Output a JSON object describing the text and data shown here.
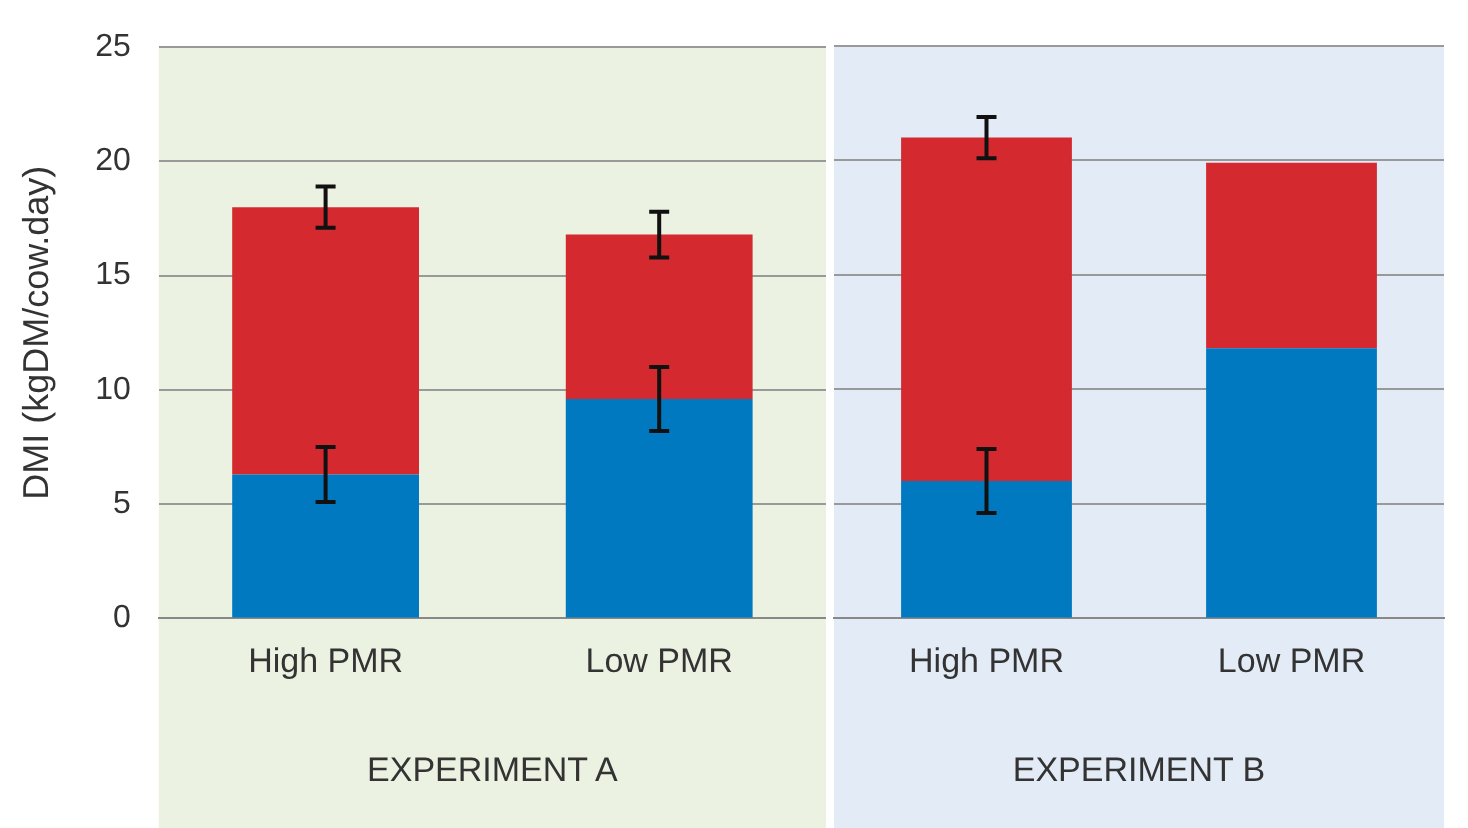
{
  "chart_data": [
    {
      "type": "bar",
      "stacked": true,
      "ylabel": "DMI (kgDM/cow.day)",
      "xlabel": "EXPERIMENT A",
      "categories": [
        "High PMR",
        "Low PMR"
      ],
      "series": [
        {
          "color": "#0079c1",
          "values": [
            6.3,
            9.6
          ],
          "errors": [
            1.2,
            1.4
          ]
        },
        {
          "color": "#d42a2f",
          "values": [
            11.7,
            7.2
          ],
          "errors": [
            0.9,
            1.0
          ]
        }
      ],
      "ylim": [
        0,
        25
      ],
      "yticks": [
        0,
        5,
        10,
        15,
        20,
        25
      ],
      "grid": "y",
      "legend": false,
      "bands": [
        {
          "axis": "x",
          "from": "High PMR",
          "to": "Low PMR",
          "color": "#ebf2e1"
        }
      ]
    },
    {
      "type": "bar",
      "stacked": true,
      "xlabel": "EXPERIMENT B",
      "categories": [
        "High PMR",
        "Low PMR"
      ],
      "series": [
        {
          "color": "#0079c1",
          "values": [
            6.0,
            11.8
          ],
          "errors": [
            1.4,
            null
          ]
        },
        {
          "color": "#d42a2f",
          "values": [
            15.0,
            8.1
          ],
          "errors": [
            0.9,
            null
          ]
        }
      ],
      "ylim": [
        0,
        25
      ],
      "yticks": [
        0,
        5,
        10,
        15,
        20,
        25
      ],
      "grid": "y",
      "legend": false,
      "tick_labels": "x",
      "bands": [
        {
          "axis": "x",
          "from": "High PMR",
          "to": "Low PMR",
          "color": "#e3ebf6"
        }
      ]
    }
  ]
}
